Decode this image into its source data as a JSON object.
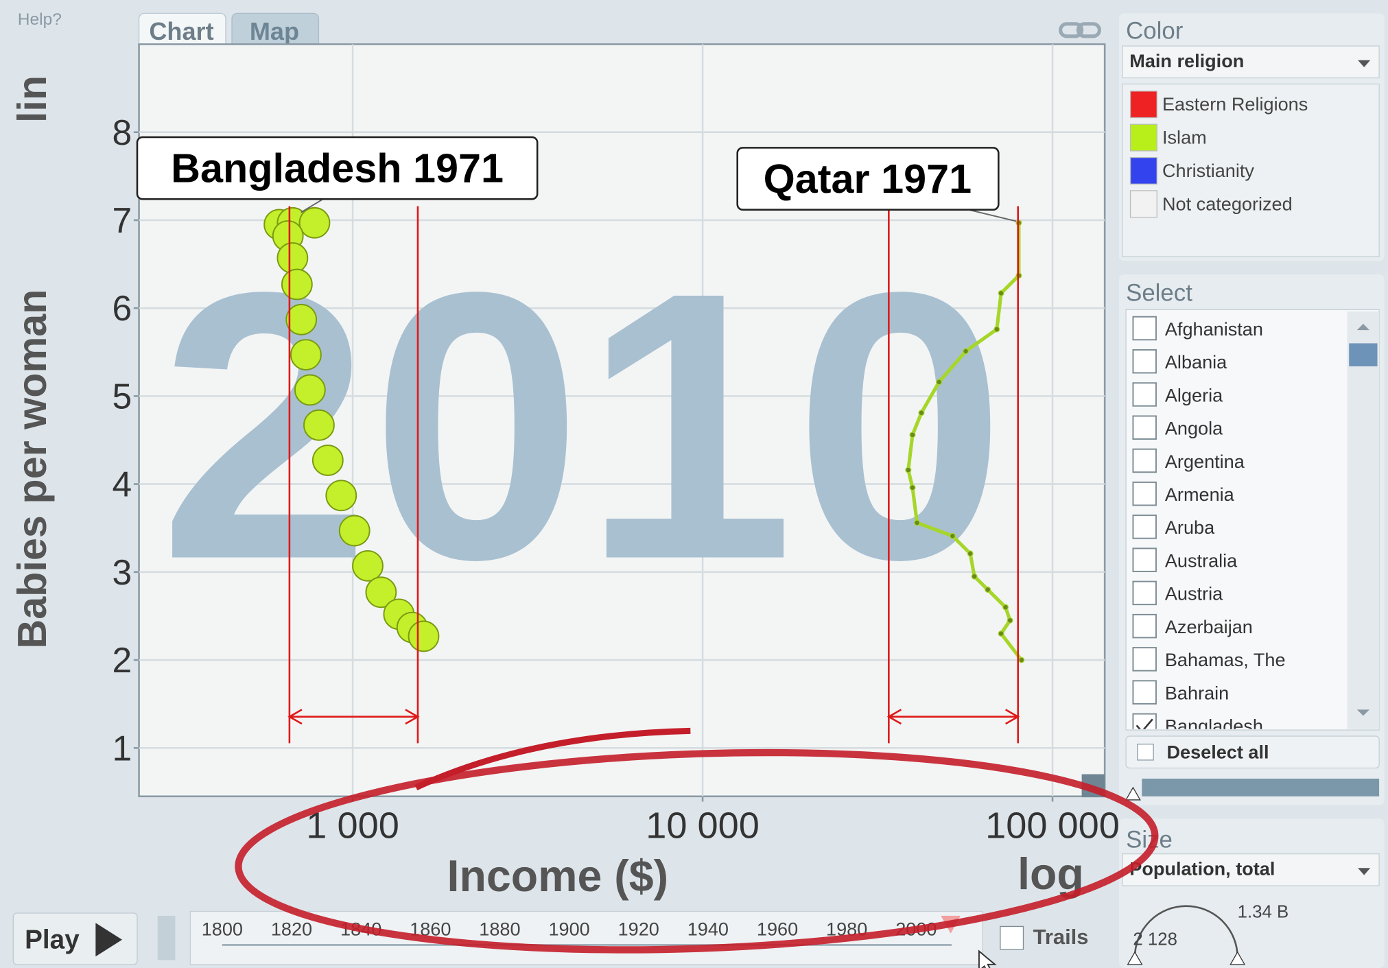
{
  "help": "Help?",
  "tabs": [
    "Chart",
    "Map"
  ],
  "chart_data": {
    "type": "scatter",
    "year_label": "2010",
    "x_label": "Income ($)",
    "y_label": "Babies per woman",
    "x_scale_label": "log",
    "y_scale_label": "lin",
    "log_x": true,
    "grid": true,
    "xlim": [
      245,
      141000
    ],
    "ylim": [
      0.45,
      9
    ],
    "xticks": [
      {
        "value": 1000,
        "label": "1 000"
      },
      {
        "value": 10000,
        "label": "10 000"
      },
      {
        "value": 100000,
        "label": "100 000"
      }
    ],
    "yticks": [
      1,
      2,
      3,
      4,
      5,
      6,
      7,
      8
    ],
    "annotations": [
      "Bangladesh 1971",
      "Qatar 1971"
    ],
    "series": [
      {
        "name": "Bangladesh",
        "color": "#c3f02a",
        "style": "bubbles",
        "x": [
          617,
          673,
          778,
          653,
          673,
          693,
          713,
          735,
          755,
          801,
          849,
          927,
          1012,
          1104,
          1205,
          1355,
          1479,
          1595
        ],
        "y": [
          6.95,
          6.97,
          6.97,
          6.82,
          6.57,
          6.27,
          5.87,
          5.47,
          5.07,
          4.67,
          4.27,
          3.87,
          3.47,
          3.07,
          2.77,
          2.52,
          2.37,
          2.27
        ]
      },
      {
        "name": "Qatar",
        "color": "#a6d62a",
        "style": "trail",
        "x": [
          80100,
          80100,
          71300,
          69300,
          56500,
          47400,
          42200,
          39800,
          38700,
          39800,
          41000,
          51800,
          58200,
          59800,
          65300,
          73400,
          75600,
          71300,
          81500
        ],
        "y": [
          6.97,
          6.37,
          6.17,
          5.76,
          5.51,
          5.16,
          4.81,
          4.56,
          4.16,
          3.96,
          3.56,
          3.41,
          3.21,
          2.95,
          2.8,
          2.6,
          2.45,
          2.3,
          2.0
        ]
      }
    ]
  },
  "color_panel": {
    "title": "Color",
    "dropdown": "Main religion",
    "legend": [
      {
        "label": "Eastern Religions",
        "color": "#ee2222"
      },
      {
        "label": "Islam",
        "color": "#b8ef1a"
      },
      {
        "label": "Christianity",
        "color": "#3344ee"
      },
      {
        "label": "Not categorized",
        "color": "#f2f2f2"
      }
    ]
  },
  "select_panel": {
    "title": "Select",
    "countries": [
      "Afghanistan",
      "Albania",
      "Algeria",
      "Angola",
      "Argentina",
      "Armenia",
      "Aruba",
      "Australia",
      "Austria",
      "Azerbaijan",
      "Bahamas, The",
      "Bahrain",
      "Bangladesh"
    ],
    "button": "Deselect all"
  },
  "size_panel": {
    "title": "Size",
    "dropdown": "Population, total",
    "max": "1.34 B",
    "min": "2 128"
  },
  "play": "Play",
  "timeline": [
    "1800",
    "1820",
    "1840",
    "1860",
    "1880",
    "1900",
    "1920",
    "1940",
    "1960",
    "1980",
    "2000"
  ],
  "trails": "Trails"
}
